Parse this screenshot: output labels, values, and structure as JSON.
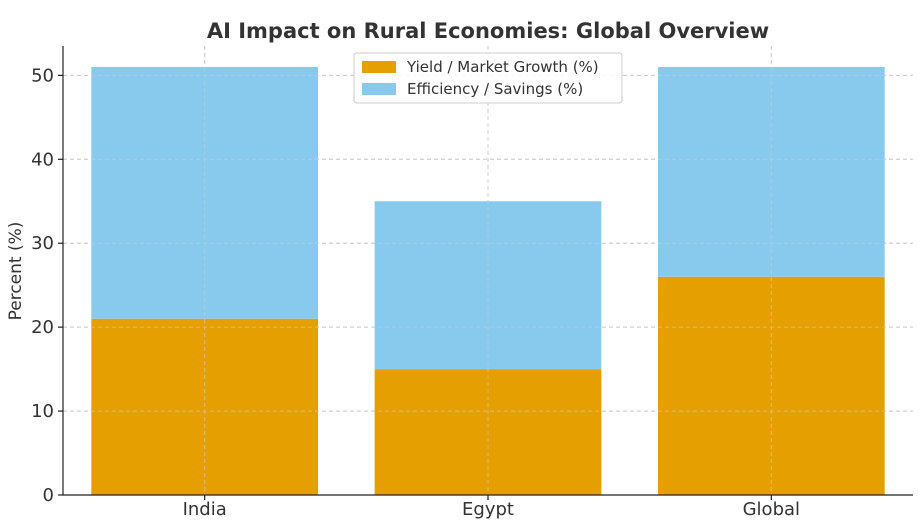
{
  "chart_data": {
    "type": "bar",
    "stacked": true,
    "title": "AI Impact on Rural Economies: Global Overview",
    "xlabel": "",
    "ylabel": "Percent (%)",
    "categories": [
      "India",
      "Egypt",
      "Global"
    ],
    "series": [
      {
        "name": "Yield / Market Growth (%)",
        "values": [
          21,
          15,
          26
        ],
        "color": "#E69F00"
      },
      {
        "name": "Efficiency / Savings (%)",
        "values": [
          30,
          20,
          25
        ],
        "color": "#88C9EE"
      }
    ],
    "ylim": [
      0,
      53.5
    ],
    "yticks": [
      0,
      10,
      20,
      30,
      40,
      50
    ],
    "grid": true,
    "legend_position": "top-center"
  }
}
